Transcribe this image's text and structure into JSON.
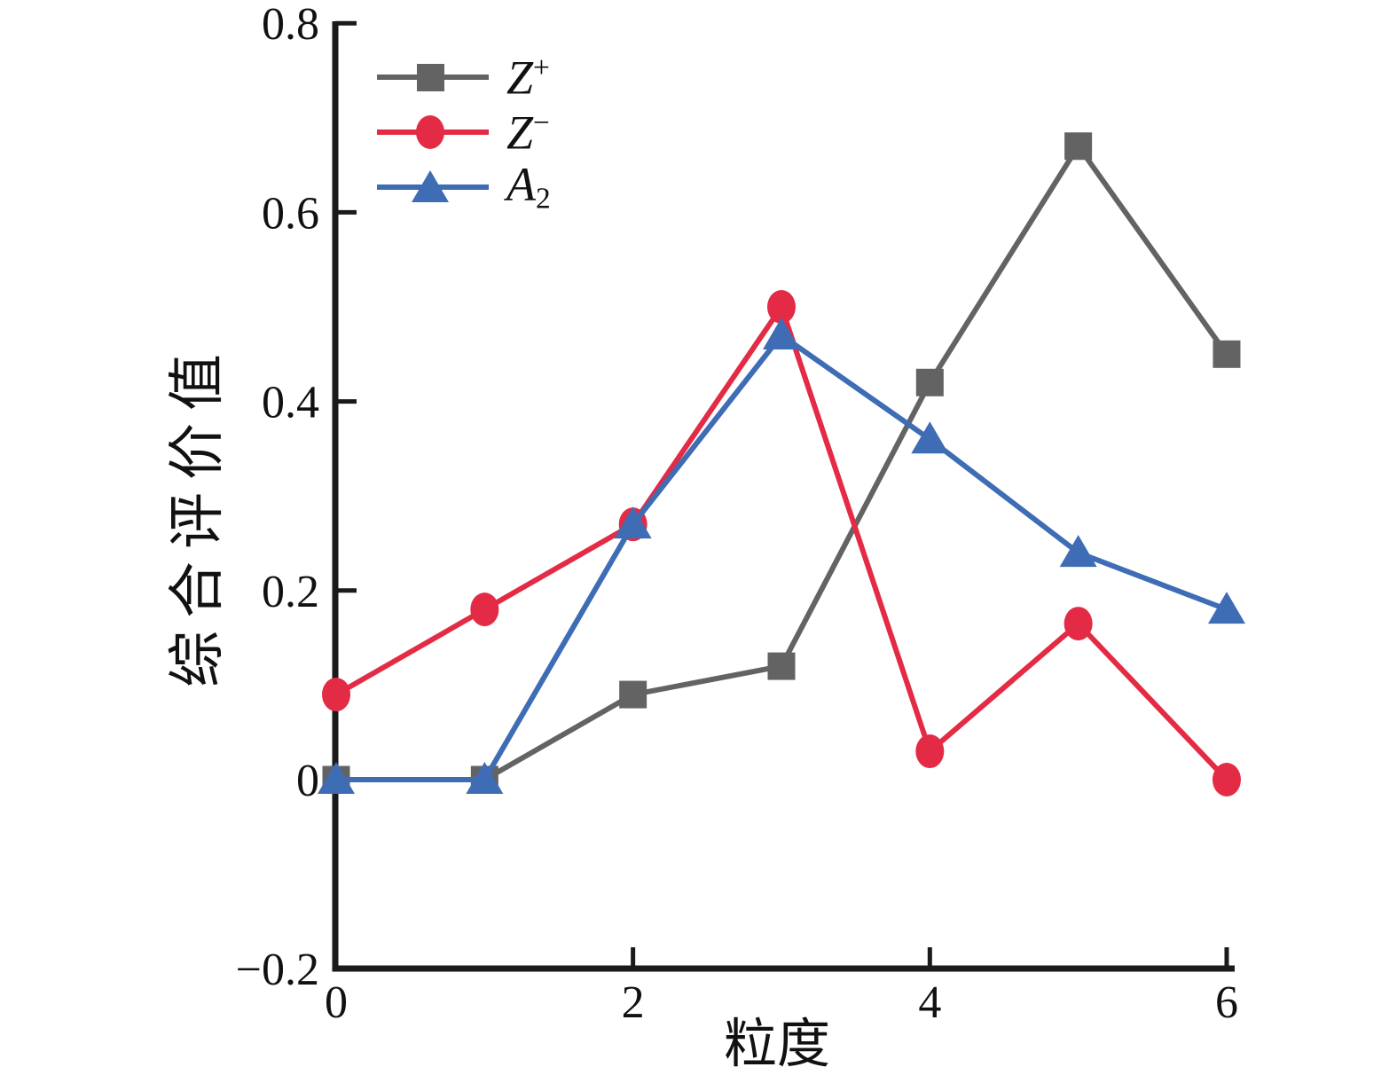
{
  "chart_data": {
    "type": "line",
    "title": "",
    "xlabel": "粒度",
    "ylabel": "综合评价值",
    "xlim": [
      0,
      6
    ],
    "ylim": [
      -0.2,
      0.8
    ],
    "grid": false,
    "legend_position": "upper-left-inside",
    "axis_color": "#1a1a1a",
    "x": [
      0,
      1,
      2,
      3,
      4,
      5,
      6
    ],
    "x_tick_values": [
      0,
      2,
      4,
      6
    ],
    "x_tick_labels": [
      "0",
      "2",
      "4",
      "6"
    ],
    "y_tick_values": [
      0.8,
      0.6,
      0.4,
      0.2,
      0,
      -0.2
    ],
    "y_tick_labels": [
      "0.8",
      "0.6",
      "0.4",
      "0.2",
      "0",
      "−0.2"
    ],
    "series": [
      {
        "name": "Z+",
        "slug": "z-plus",
        "label_base": "Z",
        "label_script": "+",
        "script_position": "sup",
        "marker": "square",
        "color": "#636363",
        "values": [
          0,
          0,
          0.09,
          0.12,
          0.42,
          0.67,
          0.45
        ]
      },
      {
        "name": "Z-",
        "slug": "z-minus",
        "label_base": "Z",
        "label_script": "−",
        "script_position": "sup",
        "marker": "circle",
        "color": "#E42B45",
        "values": [
          0.09,
          0.18,
          0.27,
          0.5,
          0.03,
          0.165,
          0
        ]
      },
      {
        "name": "A2",
        "slug": "a2",
        "label_base": "A",
        "label_script": "2",
        "script_position": "sub",
        "marker": "triangle",
        "color": "#3E6CB5",
        "values": [
          0,
          0,
          0.27,
          0.47,
          0.36,
          0.24,
          0.18
        ]
      }
    ]
  }
}
